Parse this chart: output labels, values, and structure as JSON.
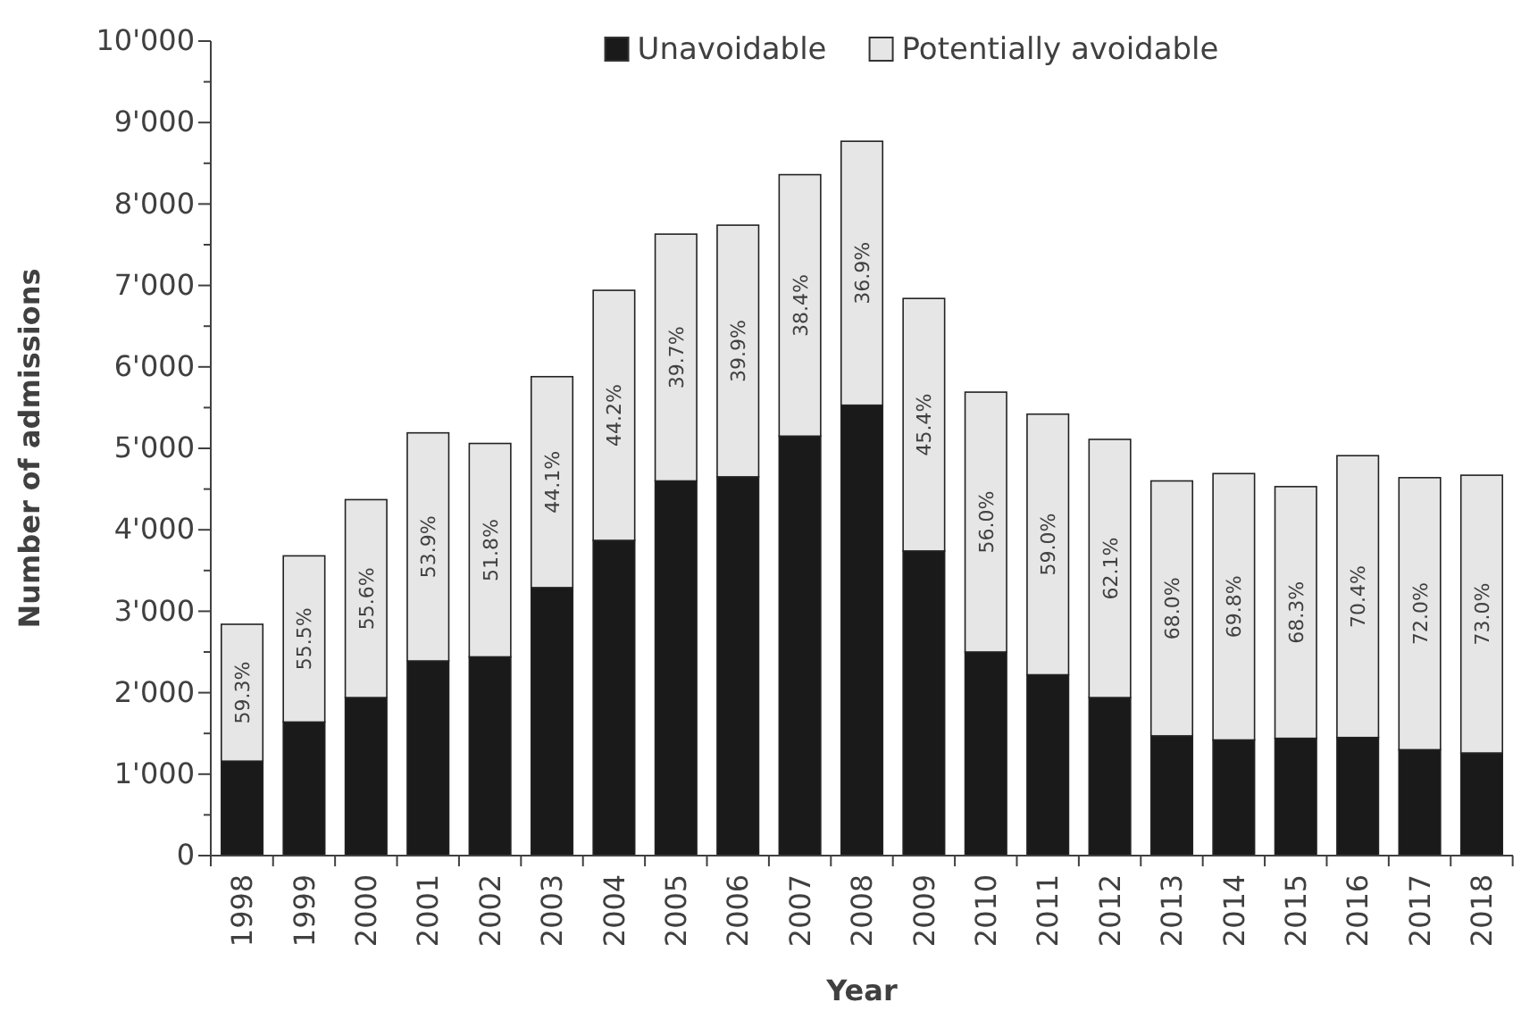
{
  "chart_data": {
    "type": "bar",
    "stacked": true,
    "xlabel": "Year",
    "ylabel": "Number of admissions",
    "categories": [
      "1998",
      "1999",
      "2000",
      "2001",
      "2002",
      "2003",
      "2004",
      "2005",
      "2006",
      "2007",
      "2008",
      "2009",
      "2010",
      "2011",
      "2012",
      "2013",
      "2014",
      "2015",
      "2016",
      "2017",
      "2018"
    ],
    "series": [
      {
        "name": "Unavoidable",
        "color": "#1a1a1a",
        "values": [
          1160,
          1640,
          1940,
          2390,
          2440,
          3290,
          3870,
          4600,
          4650,
          5150,
          5530,
          3740,
          2500,
          2220,
          1940,
          1470,
          1420,
          1440,
          1450,
          1300,
          1260
        ]
      },
      {
        "name": "Potentially avoidable",
        "color": "#e6e6e6",
        "values": [
          1680,
          2040,
          2430,
          2800,
          2620,
          2590,
          3070,
          3030,
          3090,
          3210,
          3240,
          3100,
          3190,
          3200,
          3170,
          3130,
          3270,
          3090,
          3460,
          3340,
          3410
        ]
      }
    ],
    "annotations": [
      "59.3%",
      "55.5%",
      "55.6%",
      "53.9%",
      "51.8%",
      "44.1%",
      "44.2%",
      "39.7%",
      "39.9%",
      "38.4%",
      "36.9%",
      "45.4%",
      "56.0%",
      "59.0%",
      "62.1%",
      "68.0%",
      "69.8%",
      "68.3%",
      "70.4%",
      "72.0%",
      "73.0%"
    ],
    "ylim": [
      0,
      10000
    ],
    "yticks": [
      {
        "value": 0,
        "label": "0"
      },
      {
        "value": 500,
        "label": null
      },
      {
        "value": 1000,
        "label": "1'000"
      },
      {
        "value": 1500,
        "label": null
      },
      {
        "value": 2000,
        "label": "2'000"
      },
      {
        "value": 2500,
        "label": null
      },
      {
        "value": 3000,
        "label": "3'000"
      },
      {
        "value": 3500,
        "label": null
      },
      {
        "value": 4000,
        "label": "4'000"
      },
      {
        "value": 4500,
        "label": null
      },
      {
        "value": 5000,
        "label": "5'000"
      },
      {
        "value": 5500,
        "label": null
      },
      {
        "value": 6000,
        "label": "6'000"
      },
      {
        "value": 6500,
        "label": null
      },
      {
        "value": 7000,
        "label": "7'000"
      },
      {
        "value": 7500,
        "label": null
      },
      {
        "value": 8000,
        "label": "8'000"
      },
      {
        "value": 8500,
        "label": null
      },
      {
        "value": 9000,
        "label": "9'000"
      },
      {
        "value": 9500,
        "label": null
      },
      {
        "value": 10000,
        "label": "10'000"
      }
    ],
    "grid": false,
    "legend": "top"
  }
}
